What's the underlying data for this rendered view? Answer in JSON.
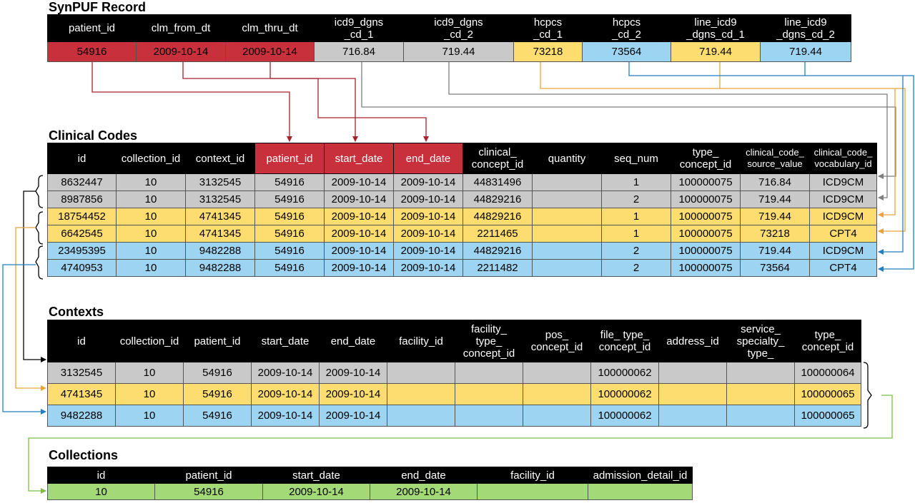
{
  "synpuf": {
    "title": "SynPUF Record",
    "headers": [
      "patient_id",
      "clm_from_dt",
      "clm_thru_dt",
      "icd9_dgns\n_cd_1",
      "icd9_dgns\n_cd_2",
      "hcpcs\n_cd_1",
      "hcpcs\n_cd_2",
      "line_icd9\n_dgns_cd_1",
      "line_icd9\n_dgns_cd_2"
    ],
    "row": [
      {
        "value": "54916",
        "color": "red"
      },
      {
        "value": "2009-10-14",
        "color": "red"
      },
      {
        "value": "2009-10-14",
        "color": "red"
      },
      {
        "value": "716.84",
        "color": "gray"
      },
      {
        "value": "719.44",
        "color": "gray"
      },
      {
        "value": "73218",
        "color": "yellow"
      },
      {
        "value": "73564",
        "color": "blue"
      },
      {
        "value": "719.44",
        "color": "yellow"
      },
      {
        "value": "719.44",
        "color": "blue"
      }
    ]
  },
  "clinical_codes": {
    "title": "Clinical Codes",
    "headers": [
      "id",
      "collection_id",
      "context_id",
      "patient_id",
      "start_date",
      "end_date",
      "clinical_\nconcept_id",
      "quantity",
      "seq_num",
      "type_\nconcept_id",
      "clinical_code_\nsource_value",
      "clinical_code_\nvocabulary_id"
    ],
    "highlighted_headers": [
      "patient_id",
      "start_date",
      "end_date"
    ],
    "rows": [
      {
        "color": "gray",
        "cells": [
          "8632447",
          "10",
          "3132545",
          "54916",
          "2009-10-14",
          "2009-10-14",
          "44831496",
          "",
          "1",
          "100000075",
          "716.84",
          "ICD9CM"
        ]
      },
      {
        "color": "gray",
        "cells": [
          "8987856",
          "10",
          "3132545",
          "54916",
          "2009-10-14",
          "2009-10-14",
          "44829216",
          "",
          "2",
          "100000075",
          "719.44",
          "ICD9CM"
        ]
      },
      {
        "color": "yellow",
        "cells": [
          "18754452",
          "10",
          "4741345",
          "54916",
          "2009-10-14",
          "2009-10-14",
          "44829216",
          "",
          "1",
          "100000075",
          "719.44",
          "ICD9CM"
        ]
      },
      {
        "color": "yellow",
        "cells": [
          "6642545",
          "10",
          "4741345",
          "54916",
          "2009-10-14",
          "2009-10-14",
          "2211465",
          "",
          "1",
          "100000075",
          "73218",
          "CPT4"
        ]
      },
      {
        "color": "blue",
        "cells": [
          "23495395",
          "10",
          "9482288",
          "54916",
          "2009-10-14",
          "2009-10-14",
          "44829216",
          "",
          "2",
          "100000075",
          "719.44",
          "ICD9CM"
        ]
      },
      {
        "color": "blue",
        "cells": [
          "4740953",
          "10",
          "9482288",
          "54916",
          "2009-10-14",
          "2009-10-14",
          "2211482",
          "",
          "2",
          "100000075",
          "73564",
          "CPT4"
        ]
      }
    ]
  },
  "contexts": {
    "title": "Contexts",
    "headers": [
      "id",
      "collection_id",
      "patient_id",
      "start_date",
      "end_date",
      "facility_id",
      "facility_\ntype_\nconcept_id",
      "pos_\nconcept_id",
      "file_ type_\nconcept_id",
      "address_id",
      "service_\nspecialty_\ntype_",
      "type_\nconcept_id"
    ],
    "rows": [
      {
        "color": "gray",
        "cells": [
          "3132545",
          "10",
          "54916",
          "2009-10-14",
          "2009-10-14",
          "",
          "",
          "",
          "100000062",
          "",
          "",
          "100000064"
        ]
      },
      {
        "color": "yellow",
        "cells": [
          "4741345",
          "10",
          "54916",
          "2009-10-14",
          "2009-10-14",
          "",
          "",
          "",
          "100000062",
          "",
          "",
          "100000065"
        ]
      },
      {
        "color": "blue",
        "cells": [
          "9482288",
          "10",
          "54916",
          "2009-10-14",
          "2009-10-14",
          "",
          "",
          "",
          "100000062",
          "",
          "",
          "100000065"
        ]
      }
    ]
  },
  "collections": {
    "title": "Collections",
    "headers": [
      "id",
      "patient_id",
      "start_date",
      "end_date",
      "facility_id",
      "admission_detail_id"
    ],
    "rows": [
      {
        "color": "green",
        "cells": [
          "10",
          "54916",
          "2009-10-14",
          "2009-10-14",
          "",
          ""
        ]
      }
    ]
  },
  "colors": {
    "red": "#c8303c",
    "gray_cell": "#c9c9c9",
    "yellow_cell": "#fedd70",
    "blue_cell": "#9dd4f1",
    "green_cell": "#a3d977",
    "red_arrow": "#a7212f",
    "gray_arrow": "#7f7f7f",
    "yellow_arrow": "#e8a33a",
    "blue_arrow": "#1f7fc1",
    "green_arrow": "#7bbf45",
    "black_arrow": "#000000"
  }
}
